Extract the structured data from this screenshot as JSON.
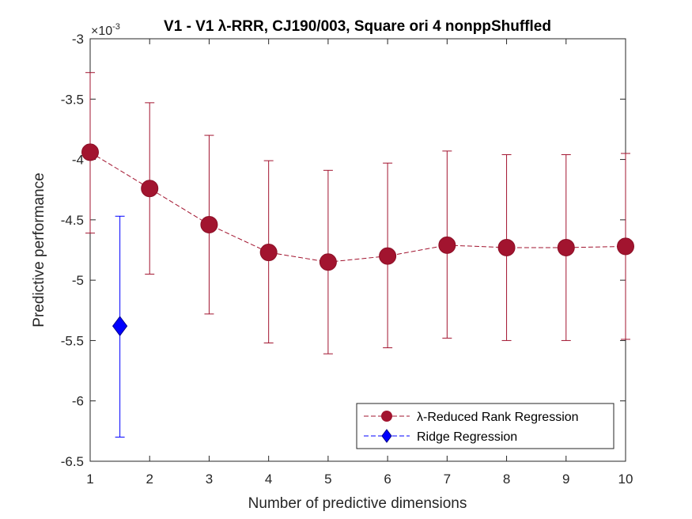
{
  "chart_data": {
    "type": "line",
    "title": "V1 - V1 λ-RRR, CJ190/003, Square ori 4 nonppShuffled",
    "xlabel": "Number of predictive dimensions",
    "ylabel": "Predictive performance",
    "exponent_label": "×10",
    "exponent_power": "-3",
    "xlim": [
      1,
      10
    ],
    "ylim": [
      -6.5,
      -3
    ],
    "xticks": [
      "1",
      "2",
      "3",
      "4",
      "5",
      "6",
      "7",
      "8",
      "9",
      "10"
    ],
    "yticks": [
      "-3",
      "-3.5",
      "-4",
      "-4.5",
      "-5",
      "-5.5",
      "-6",
      "-6.5"
    ],
    "grid": false,
    "legend_position": "bottom-right",
    "series": [
      {
        "name": "λ-Reduced Rank Regression",
        "color": "#a2142f",
        "marker": "circle",
        "line_style": "dashed",
        "x": [
          1,
          2,
          3,
          4,
          5,
          6,
          7,
          8,
          9,
          10
        ],
        "y": [
          -3.94,
          -4.24,
          -4.54,
          -4.77,
          -4.85,
          -4.8,
          -4.71,
          -4.73,
          -4.73,
          -4.72
        ],
        "err_low": [
          -4.61,
          -4.95,
          -5.28,
          -5.52,
          -5.61,
          -5.56,
          -5.48,
          -5.5,
          -5.5,
          -5.49
        ],
        "err_high": [
          -3.28,
          -3.53,
          -3.8,
          -4.01,
          -4.09,
          -4.03,
          -3.93,
          -3.96,
          -3.96,
          -3.95
        ]
      },
      {
        "name": "Ridge Regression",
        "color": "#0000ff",
        "marker": "diamond",
        "line_style": "dashed",
        "x": [
          1.5
        ],
        "y": [
          -5.38
        ],
        "err_low": [
          -6.3
        ],
        "err_high": [
          -4.47
        ]
      }
    ]
  }
}
